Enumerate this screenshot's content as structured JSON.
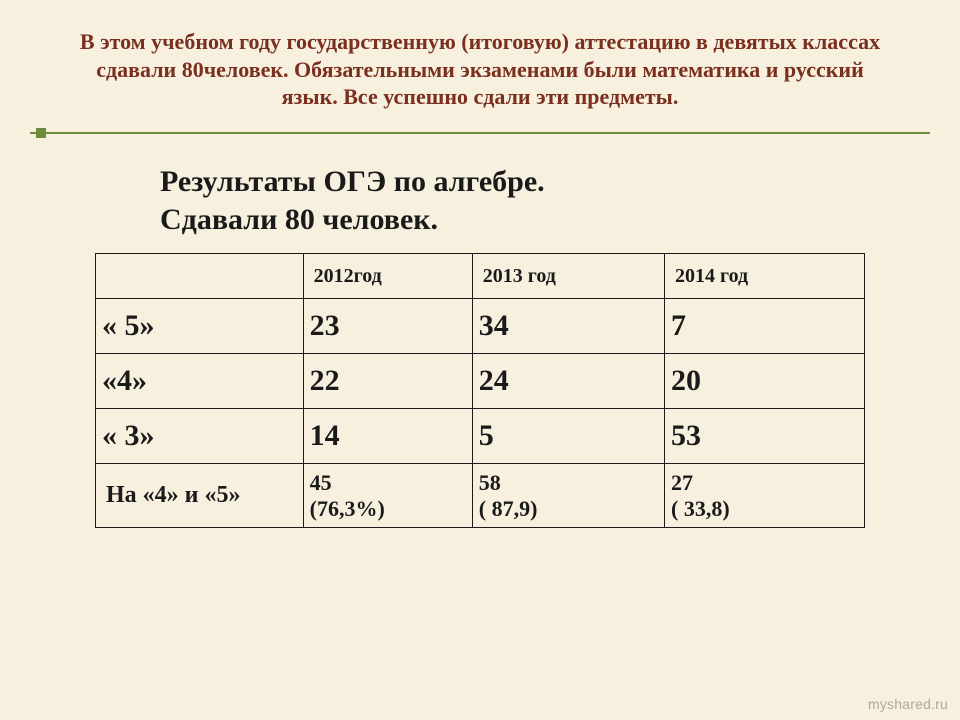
{
  "colors": {
    "background": "#f7f0df",
    "title_text": "#7a2f1f",
    "body_text": "#1a1a1a",
    "accent_line": "#6d8c3a",
    "table_border": "#1a1a1a",
    "watermark": "rgba(120,120,120,0.6)"
  },
  "typography": {
    "family": "Times New Roman",
    "title_size_pt": 17,
    "subtitle_size_pt": 22,
    "header_row_size_pt": 15,
    "big_cell_size_pt": 22,
    "small_cell_size_pt": 17
  },
  "title": "В этом учебном году государственную (итоговую) аттестацию в девятых классах  сдавали 80человек. Обязательными экзаменами были  математика и русский язык. Все успешно сдали эти предметы.",
  "subtitle_line1": "Результаты ОГЭ по   алгебре.",
  "subtitle_line2": "Сдавали 80 человек.",
  "table": {
    "type": "table",
    "column_widths_pct": [
      27,
      22,
      25,
      26
    ],
    "columns": [
      "",
      "2012год",
      "2013 год",
      "2014 год"
    ],
    "rows": [
      {
        "style": "big",
        "label": "« 5»",
        "values": [
          "23",
          "34",
          "7"
        ]
      },
      {
        "style": "big",
        "label": "«4»",
        "values": [
          "22",
          "24",
          "20"
        ]
      },
      {
        "style": "big",
        "label": "« 3»",
        "values": [
          "14",
          "5",
          "53"
        ]
      },
      {
        "style": "small",
        "label": "На «4» и «5»",
        "values": [
          "45\n(76,3%)",
          "58\n( 87,9)",
          "27\n( 33,8)"
        ]
      }
    ]
  },
  "watermark": "myshared.ru"
}
